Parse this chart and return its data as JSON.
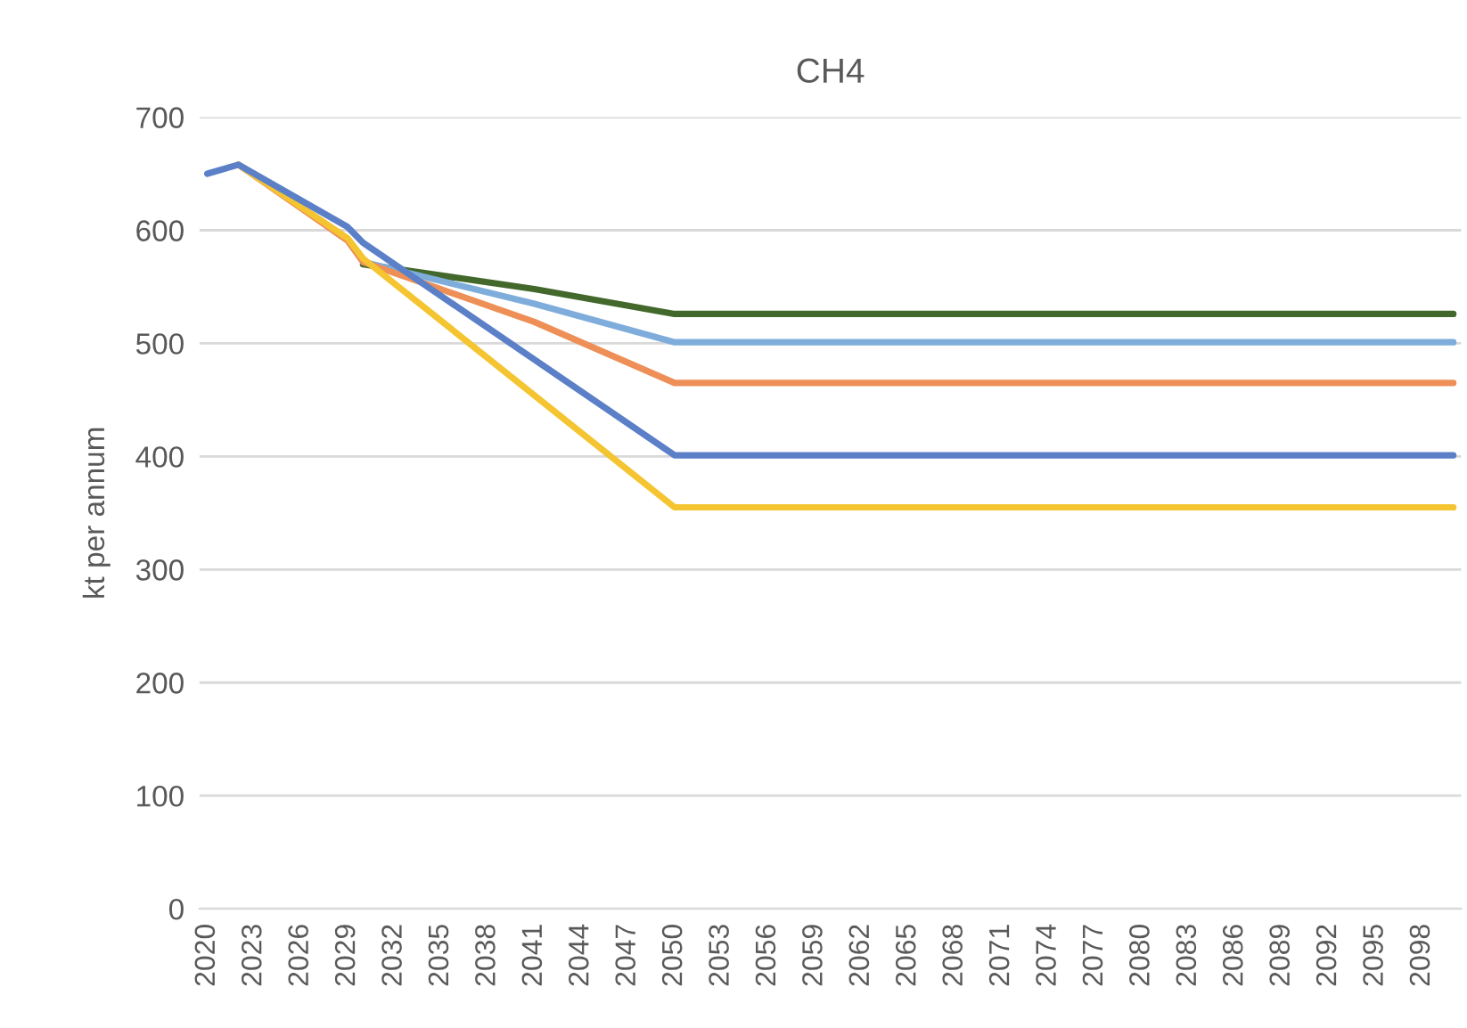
{
  "chart_data": {
    "type": "line",
    "title": "CH4",
    "ylabel": "kt per annum",
    "xlim": [
      2019.5,
      2100.5
    ],
    "xticks": [
      2020,
      2023,
      2026,
      2029,
      2032,
      2035,
      2038,
      2041,
      2044,
      2047,
      2050,
      2053,
      2056,
      2059,
      2062,
      2065,
      2068,
      2071,
      2074,
      2077,
      2080,
      2083,
      2086,
      2089,
      2092,
      2095,
      2098
    ],
    "ylim": [
      0,
      700
    ],
    "yticks": [
      0,
      100,
      200,
      300,
      400,
      500,
      600,
      700
    ],
    "grid": "y",
    "marker": "none",
    "line_style": "solid",
    "series": [
      {
        "color": "#43682b",
        "x": [
          2030,
          2041,
          2050,
          2100
        ],
        "values": [
          570,
          548,
          526,
          526
        ]
      },
      {
        "color": "#7eaddc",
        "x": [
          2030,
          2041,
          2050,
          2100
        ],
        "values": [
          572,
          535,
          501,
          501
        ]
      },
      {
        "color": "#ed8f57",
        "x": [
          2022,
          2029,
          2030,
          2041,
          2050,
          2100
        ],
        "values": [
          658,
          591,
          572,
          519,
          465,
          465
        ]
      },
      {
        "color": "#f5c431",
        "x": [
          2022,
          2029,
          2030,
          2050,
          2100
        ],
        "values": [
          658,
          593,
          575,
          355,
          355
        ]
      },
      {
        "color": "#5b80c8",
        "x": [
          2020,
          2022,
          2029,
          2030,
          2050,
          2100
        ],
        "values": [
          650,
          658,
          603,
          589,
          401,
          401
        ]
      }
    ]
  }
}
